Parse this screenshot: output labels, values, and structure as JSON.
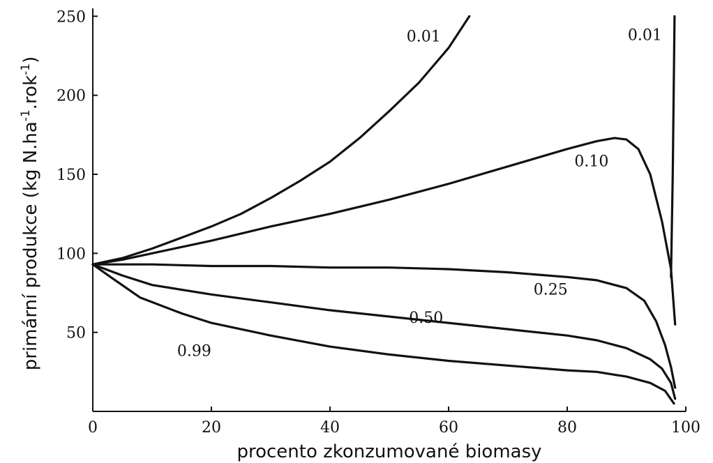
{
  "chart_data": {
    "type": "line",
    "xlabel": "procento zkonzumované biomasy",
    "ylabel_parts": {
      "base": "primární produkce (kg N.ha",
      "exp1": "-1",
      "mid": ".rok",
      "exp2": "-1",
      "end": ")"
    },
    "xlim": [
      0,
      100
    ],
    "ylim": [
      0,
      255
    ],
    "x_ticks": [
      0,
      20,
      40,
      60,
      80,
      100
    ],
    "y_ticks": [
      50,
      100,
      150,
      200,
      250
    ],
    "grid": false,
    "series": [
      {
        "name": "0.01",
        "points": [
          [
            0,
            93
          ],
          [
            5,
            97
          ],
          [
            10,
            103
          ],
          [
            15,
            110
          ],
          [
            20,
            117
          ],
          [
            25,
            125
          ],
          [
            30,
            135
          ],
          [
            35,
            146
          ],
          [
            40,
            158
          ],
          [
            45,
            173
          ],
          [
            50,
            190
          ],
          [
            55,
            208
          ],
          [
            60,
            230
          ],
          [
            63.5,
            250
          ]
        ]
      },
      {
        "name": "0.01",
        "points": [
          [
            97.5,
            85
          ],
          [
            97.8,
            150
          ],
          [
            98.1,
            250
          ]
        ]
      },
      {
        "name": "0.10",
        "points": [
          [
            0,
            93
          ],
          [
            5,
            96
          ],
          [
            10,
            100
          ],
          [
            20,
            108
          ],
          [
            30,
            117
          ],
          [
            40,
            125
          ],
          [
            50,
            134
          ],
          [
            60,
            144
          ],
          [
            70,
            155
          ],
          [
            80,
            166
          ],
          [
            85,
            171
          ],
          [
            88,
            173
          ],
          [
            90,
            172
          ],
          [
            92,
            166
          ],
          [
            94,
            150
          ],
          [
            96,
            120
          ],
          [
            97.5,
            90
          ],
          [
            98.2,
            55
          ]
        ]
      },
      {
        "name": "0.25",
        "points": [
          [
            0,
            93
          ],
          [
            10,
            93
          ],
          [
            20,
            92
          ],
          [
            30,
            92
          ],
          [
            40,
            91
          ],
          [
            50,
            91
          ],
          [
            60,
            90
          ],
          [
            70,
            88
          ],
          [
            80,
            85
          ],
          [
            85,
            83
          ],
          [
            90,
            78
          ],
          [
            93,
            70
          ],
          [
            95,
            57
          ],
          [
            96.5,
            42
          ],
          [
            97.5,
            28
          ],
          [
            98.2,
            15
          ]
        ]
      },
      {
        "name": "0.50",
        "points": [
          [
            0,
            93
          ],
          [
            5,
            86
          ],
          [
            10,
            80
          ],
          [
            20,
            74
          ],
          [
            30,
            69
          ],
          [
            40,
            64
          ],
          [
            50,
            60
          ],
          [
            60,
            56
          ],
          [
            70,
            52
          ],
          [
            80,
            48
          ],
          [
            85,
            45
          ],
          [
            90,
            40
          ],
          [
            94,
            33
          ],
          [
            96,
            27
          ],
          [
            97.5,
            18
          ],
          [
            98.2,
            8
          ]
        ]
      },
      {
        "name": "0.99",
        "points": [
          [
            0,
            93
          ],
          [
            3,
            85
          ],
          [
            8,
            72
          ],
          [
            15,
            62
          ],
          [
            20,
            56
          ],
          [
            30,
            48
          ],
          [
            40,
            41
          ],
          [
            50,
            36
          ],
          [
            60,
            32
          ],
          [
            70,
            29
          ],
          [
            80,
            26
          ],
          [
            85,
            25
          ],
          [
            90,
            22
          ],
          [
            94,
            18
          ],
          [
            96.5,
            13
          ],
          [
            98,
            5
          ]
        ]
      }
    ],
    "annotations": [
      {
        "text": "0.01",
        "x": 55.8,
        "y": 234
      },
      {
        "text": "0.01",
        "x": 93.1,
        "y": 235
      },
      {
        "text": "0.10",
        "x": 84.1,
        "y": 155
      },
      {
        "text": "0.25",
        "x": 77.2,
        "y": 74
      },
      {
        "text": "0.50",
        "x": 56.2,
        "y": 56
      },
      {
        "text": "0.99",
        "x": 17.1,
        "y": 35
      }
    ]
  }
}
